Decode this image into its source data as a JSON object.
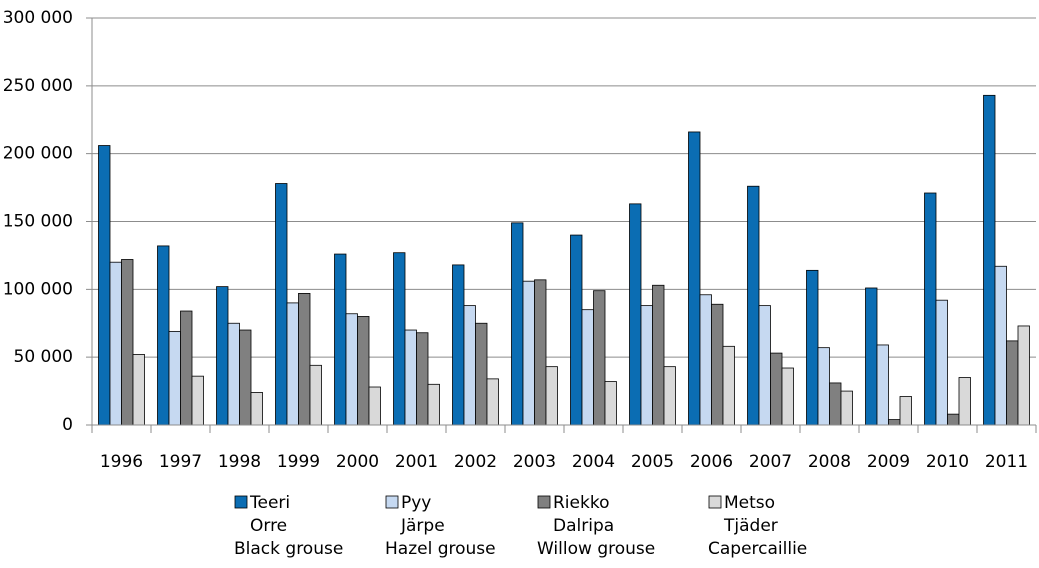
{
  "chart_data": {
    "type": "bar",
    "categories": [
      "1996",
      "1997",
      "1998",
      "1999",
      "2000",
      "2001",
      "2002",
      "2003",
      "2004",
      "2005",
      "2006",
      "2007",
      "2008",
      "2009",
      "2010",
      "2011"
    ],
    "series": [
      {
        "name": "Teeri",
        "name_sv": "Orre",
        "name_en": "Black grouse",
        "color": "#0b6db3",
        "values": [
          206000,
          132000,
          102000,
          178000,
          126000,
          127000,
          118000,
          149000,
          140000,
          163000,
          216000,
          176000,
          114000,
          101000,
          171000,
          243000
        ]
      },
      {
        "name": "Pyy",
        "name_sv": "Järpe",
        "name_en": "Hazel grouse",
        "color": "#c6d9f1",
        "values": [
          120000,
          69000,
          75000,
          90000,
          82000,
          70000,
          88000,
          106000,
          85000,
          88000,
          96000,
          88000,
          57000,
          59000,
          92000,
          117000
        ]
      },
      {
        "name": "Riekko",
        "name_sv": "Dalripa",
        "name_en": "Willow grouse",
        "color": "#808080",
        "values": [
          122000,
          84000,
          70000,
          97000,
          80000,
          68000,
          75000,
          107000,
          99000,
          103000,
          89000,
          53000,
          31000,
          4000,
          8000,
          62000
        ]
      },
      {
        "name": "Metso",
        "name_sv": "Tjäder",
        "name_en": "Capercaillie",
        "color": "#d9d9d9",
        "values": [
          52000,
          36000,
          24000,
          44000,
          28000,
          30000,
          34000,
          43000,
          32000,
          43000,
          58000,
          42000,
          25000,
          21000,
          35000,
          73000
        ]
      }
    ],
    "ylim": [
      0,
      300000
    ],
    "yticks": [
      0,
      {
        "value": 50000,
        "label": "50 000"
      },
      {
        "value": 100000,
        "label": "100 000"
      },
      {
        "value": 150000,
        "label": "150 000"
      },
      {
        "value": 200000,
        "label": "200 000"
      },
      {
        "value": 250000,
        "label": "250 000"
      },
      {
        "value": 300000,
        "label": "300 000"
      }
    ],
    "grid": true,
    "legend": "bottom"
  }
}
